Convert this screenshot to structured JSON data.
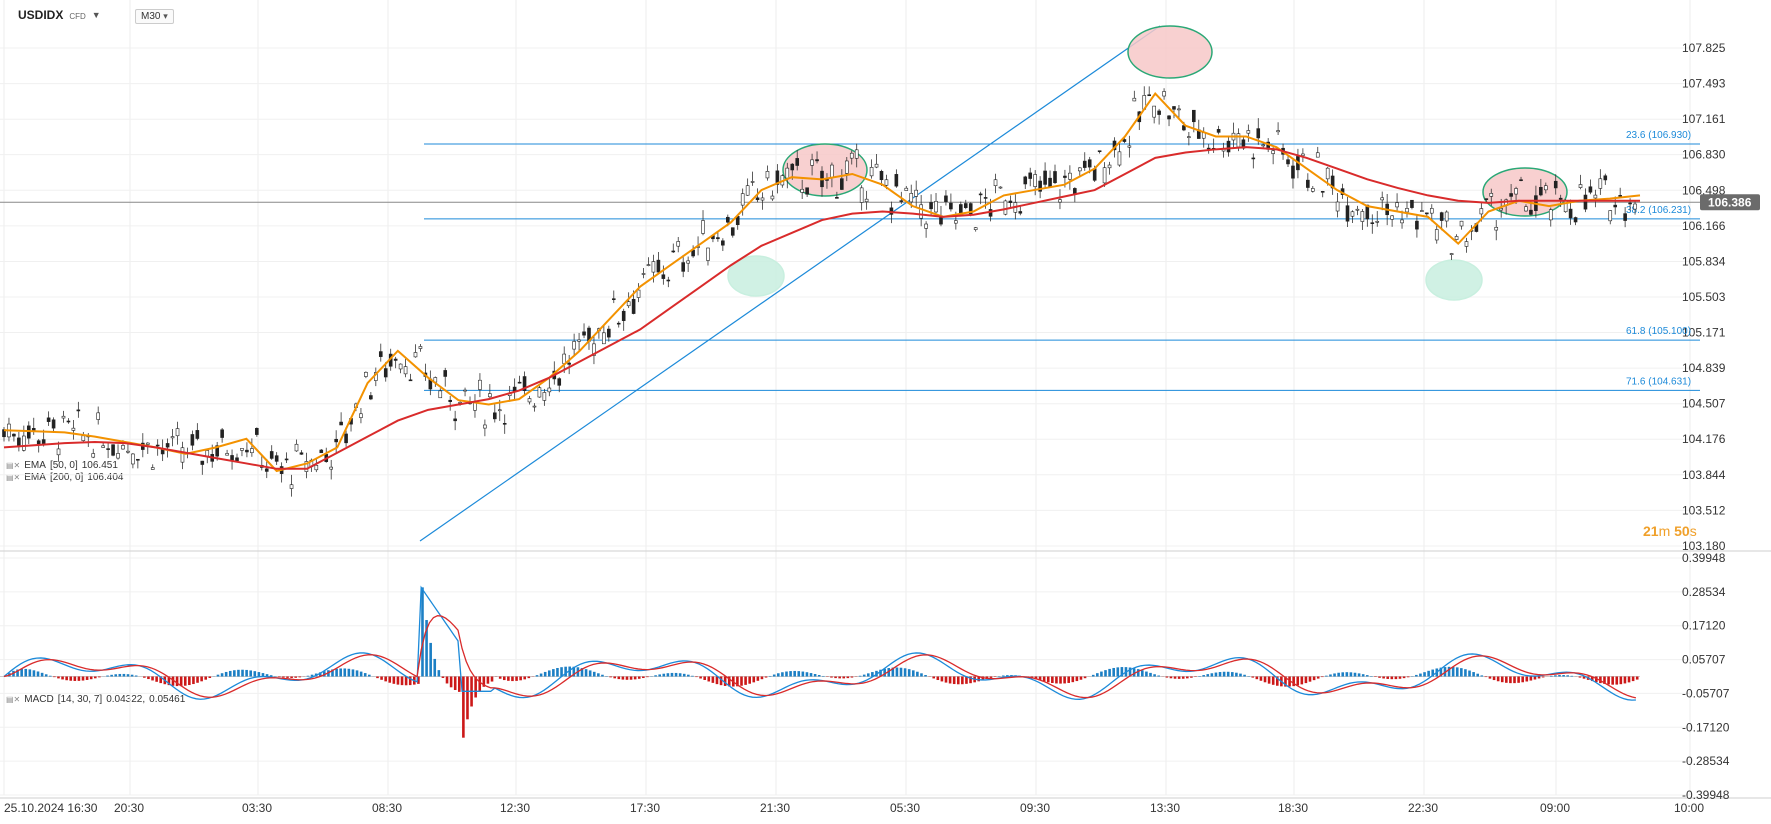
{
  "header": {
    "symbol": "USDIDX",
    "symbol_type": "CFD",
    "timeframe": "M30"
  },
  "indicators": {
    "ema50": {
      "label": "EMA",
      "params": "[50, 0]",
      "value": "106.451",
      "color": "#f39200"
    },
    "ema200": {
      "label": "EMA",
      "params": "[200, 0]",
      "value": "106.404",
      "color": "#d92b2b"
    },
    "macd": {
      "label": "MACD",
      "params": "[14, 30, 7]",
      "value1": "0.04322,",
      "value2": "0.05461"
    }
  },
  "timer": {
    "minutes": "21",
    "m": "m",
    "seconds": "50",
    "s": "s"
  },
  "fib_levels": [
    {
      "label": "23.6 (106.930)",
      "price": 106.93
    },
    {
      "label": "38.2 (106.231)",
      "price": 106.231
    },
    {
      "label": "61.8 (105.100)",
      "price": 105.1
    },
    {
      "label": "71.6 (104.631)",
      "price": 104.631
    }
  ],
  "current_price": {
    "label": "106.386",
    "value": 106.386
  },
  "chart_data": {
    "type": "line",
    "price_axis": {
      "ticks": [
        "107.825",
        "107.493",
        "107.161",
        "106.830",
        "106.498",
        "106.166",
        "105.834",
        "105.503",
        "105.171",
        "104.839",
        "104.507",
        "104.176",
        "103.844",
        "103.512",
        "103.180"
      ],
      "ylim": [
        103.18,
        107.825
      ]
    },
    "macd_axis": {
      "ticks": [
        "0.39948",
        "0.28534",
        "0.17120",
        "0.05707",
        "-0.05707",
        "-0.17120",
        "-0.28534",
        "-0.39948"
      ],
      "ylim": [
        -0.39948,
        0.39948
      ]
    },
    "time_ticks": [
      "25.10.2024  16:30",
      "20:30",
      "03:30",
      "08:30",
      "12:30",
      "17:30",
      "21:30",
      "05:30",
      "09:30",
      "13:30",
      "18:30",
      "22:30",
      "09:00",
      "10:00"
    ],
    "series": [
      {
        "name": "EMA [50, 0]",
        "color": "#f39200",
        "values": [
          104.26,
          104.25,
          104.24,
          104.2,
          104.15,
          104.1,
          104.04,
          104.1,
          104.18,
          103.88,
          103.95,
          104.1,
          104.7,
          105.0,
          104.75,
          104.54,
          104.5,
          104.55,
          104.75,
          105.0,
          105.3,
          105.6,
          105.8,
          106.0,
          106.2,
          106.5,
          106.62,
          106.6,
          106.65,
          106.55,
          106.35,
          106.25,
          106.3,
          106.45,
          106.5,
          106.55,
          106.7,
          107.0,
          107.4,
          107.1,
          107.0,
          107.0,
          106.9,
          106.7,
          106.5,
          106.35,
          106.3,
          106.25,
          106.0,
          106.3,
          106.4,
          106.35,
          106.4,
          106.42,
          106.45
        ]
      },
      {
        "name": "EMA [200, 0]",
        "color": "#d92b2b",
        "values": [
          104.1,
          104.12,
          104.14,
          104.15,
          104.14,
          104.1,
          104.05,
          104.0,
          103.95,
          103.9,
          103.9,
          104.05,
          104.2,
          104.35,
          104.45,
          104.5,
          104.55,
          104.63,
          104.75,
          104.9,
          105.05,
          105.2,
          105.4,
          105.6,
          105.8,
          105.98,
          106.1,
          106.22,
          106.28,
          106.3,
          106.28,
          106.25,
          106.27,
          106.32,
          106.38,
          106.44,
          106.5,
          106.65,
          106.8,
          106.85,
          106.88,
          106.9,
          106.88,
          106.8,
          106.7,
          106.6,
          106.52,
          106.45,
          106.4,
          106.38,
          106.4,
          106.4,
          106.4,
          106.4,
          106.4
        ]
      }
    ],
    "x_index_range": [
      0,
      54
    ]
  }
}
